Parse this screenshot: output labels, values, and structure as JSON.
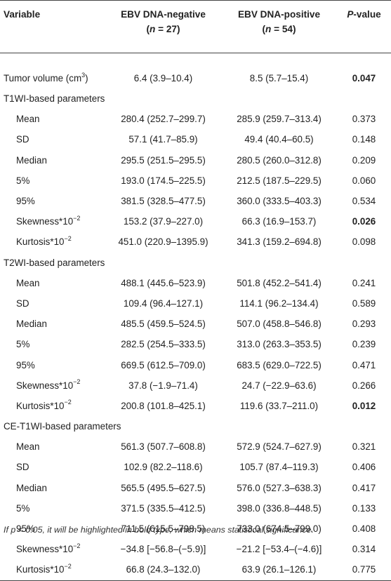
{
  "header": {
    "variable": "Variable",
    "negative_line1": "EBV DNA-negative",
    "negative_n_open": "(",
    "negative_n_var": "n",
    "negative_n_rest": " = 27)",
    "positive_line1": "EBV DNA-positive",
    "positive_n_open": "(",
    "positive_n_var": "n",
    "positive_n_rest": " = 54)",
    "p_italic": "P",
    "p_rest": "-value"
  },
  "tumor": {
    "name": "Tumor volume (cm",
    "sup": "3",
    "name_close": ")",
    "neg": "6.4 (3.9–10.4)",
    "pos": "8.5 (5.7–15.4)",
    "p": "0.047"
  },
  "sections": [
    {
      "title": "T1WI-based parameters",
      "rows": [
        {
          "name": "Mean",
          "sup": "",
          "neg": "280.4 (252.7–299.7)",
          "pos": "285.9 (259.7–313.4)",
          "p": "0.373"
        },
        {
          "name": "SD",
          "sup": "",
          "neg": "57.1 (41.7–85.9)",
          "pos": "49.4 (40.4–60.5)",
          "p": "0.148"
        },
        {
          "name": "Median",
          "sup": "",
          "neg": "295.5 (251.5–295.5)",
          "pos": "280.5 (260.0–312.8)",
          "p": "0.209"
        },
        {
          "name": "5%",
          "sup": "",
          "neg": "193.0 (174.5–225.5)",
          "pos": "212.5 (187.5–229.5)",
          "p": "0.060"
        },
        {
          "name": "95%",
          "sup": "",
          "neg": "381.5 (328.5–477.5)",
          "pos": "360.0 (333.5–403.3)",
          "p": "0.534"
        },
        {
          "name": "Skewness*10",
          "sup": "−2",
          "neg": "153.2 (37.9–227.0)",
          "pos": "66.3 (16.9–153.7)",
          "p": "0.026"
        },
        {
          "name": "Kurtosis*10",
          "sup": "−2",
          "neg": "451.0 (220.9–1395.9)",
          "pos": "341.3 (159.2–694.8)",
          "p": "0.098"
        }
      ]
    },
    {
      "title": "T2WI-based parameters",
      "rows": [
        {
          "name": "Mean",
          "sup": "",
          "neg": "488.1 (445.6–523.9)",
          "pos": "501.8 (452.2–541.4)",
          "p": "0.241"
        },
        {
          "name": "SD",
          "sup": "",
          "neg": "109.4 (96.4–127.1)",
          "pos": "114.1 (96.2–134.4)",
          "p": "0.589"
        },
        {
          "name": "Median",
          "sup": "",
          "neg": "485.5 (459.5–524.5)",
          "pos": "507.0 (458.8–546.8)",
          "p": "0.293"
        },
        {
          "name": "5%",
          "sup": "",
          "neg": "282.5 (254.5–333.5)",
          "pos": "313.0 (263.3–353.5)",
          "p": "0.239"
        },
        {
          "name": "95%",
          "sup": "",
          "neg": "669.5 (612.5–709.0)",
          "pos": "683.5 (629.0–722.5)",
          "p": "0.471"
        },
        {
          "name": "Skewness*10",
          "sup": "−2",
          "neg": "37.8 (−1.9–71.4)",
          "pos": "24.7 (−22.9–63.6)",
          "p": "0.266"
        },
        {
          "name": "Kurtosis*10",
          "sup": "−2",
          "neg": "200.8 (101.8–425.1)",
          "pos": "119.6 (33.7–211.0)",
          "p": "0.012"
        }
      ]
    },
    {
      "title": "CE-T1WI-based parameters",
      "rows": [
        {
          "name": "Mean",
          "sup": "",
          "neg": "561.3 (507.7–608.8)",
          "pos": "572.9 (524.7–627.9)",
          "p": "0.321"
        },
        {
          "name": "SD",
          "sup": "",
          "neg": "102.9 (82.2–118.6)",
          "pos": "105.7 (87.4–119.3)",
          "p": "0.406"
        },
        {
          "name": "Median",
          "sup": "",
          "neg": "565.5 (495.5–627.5)",
          "pos": "576.0 (527.3–638.3)",
          "p": "0.417"
        },
        {
          "name": "5%",
          "sup": "",
          "neg": "371.5 (335.5–412.5)",
          "pos": "398.0 (336.8–448.5)",
          "p": "0.133"
        },
        {
          "name": "95%",
          "sup": "",
          "neg": "711.5 (615.5–798.5)",
          "pos": "733.0 (674.5–799.0)",
          "p": "0.408"
        },
        {
          "name": "Skewness*10",
          "sup": "−2",
          "neg": "−34.8 [−56.8–(−5.9)]",
          "pos": "−21.2 [−53.4–(−4.6)]",
          "p": "0.314"
        },
        {
          "name": "Kurtosis*10",
          "sup": "−2",
          "neg": "66.8 (24.3–132.0)",
          "pos": "63.9 (26.1–126.1)",
          "p": "0.775"
        }
      ]
    }
  ],
  "footnote": "If p < 0.05, it will be highlighted in bold type, which means statistical significance."
}
